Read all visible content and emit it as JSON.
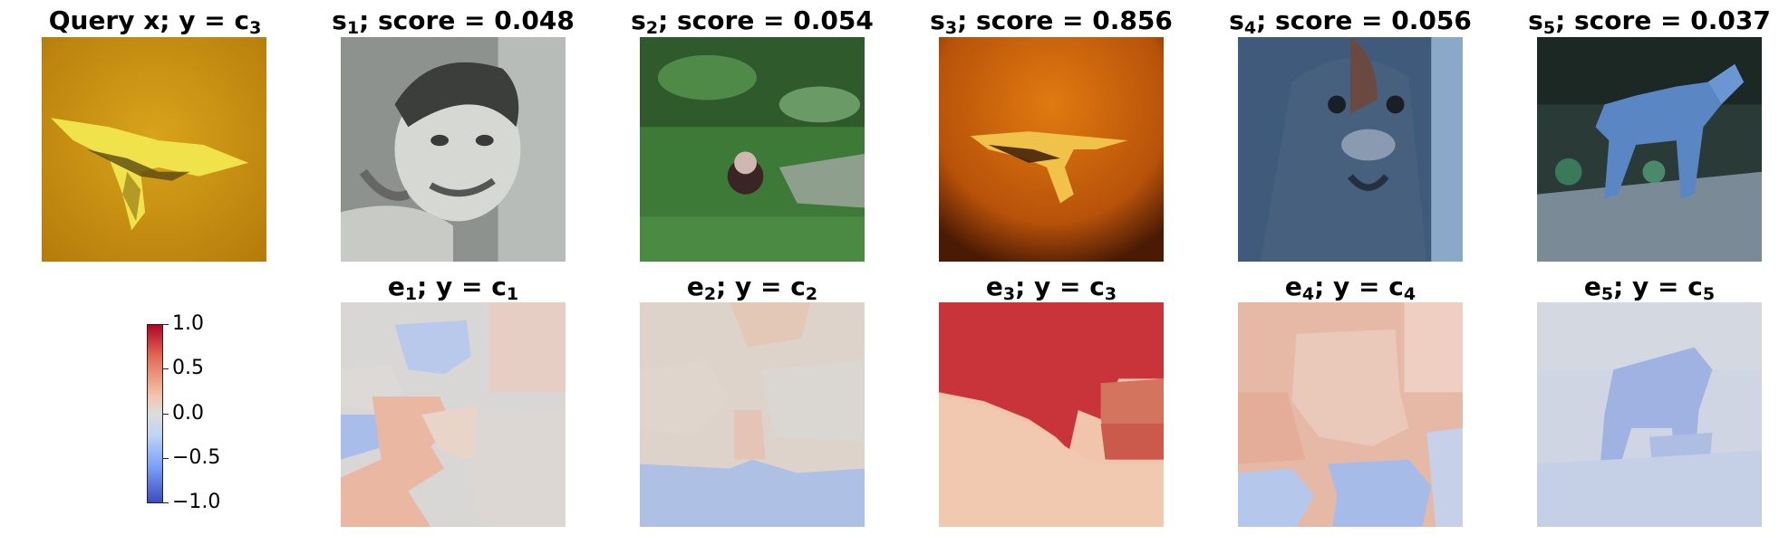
{
  "query": {
    "label": "Query x; y = ",
    "class_base": "c",
    "class_sub": "3"
  },
  "samples": [
    {
      "base": "s",
      "sub": "1",
      "score_text": "; score = 0.048"
    },
    {
      "base": "s",
      "sub": "2",
      "score_text": "; score = 0.054"
    },
    {
      "base": "s",
      "sub": "3",
      "score_text": "; score = 0.856"
    },
    {
      "base": "s",
      "sub": "4",
      "score_text": "; score = 0.056"
    },
    {
      "base": "s",
      "sub": "5",
      "score_text": "; score = 0.037"
    }
  ],
  "explanations": [
    {
      "base": "e",
      "sub": "1",
      "mid": "; y = ",
      "class_base": "c",
      "class_sub": "1"
    },
    {
      "base": "e",
      "sub": "2",
      "mid": "; y = ",
      "class_base": "c",
      "class_sub": "2"
    },
    {
      "base": "e",
      "sub": "3",
      "mid": "; y = ",
      "class_base": "c",
      "class_sub": "3"
    },
    {
      "base": "e",
      "sub": "4",
      "mid": "; y = ",
      "class_base": "c",
      "class_sub": "4"
    },
    {
      "base": "e",
      "sub": "5",
      "mid": "; y = ",
      "class_base": "c",
      "class_sub": "5"
    }
  ],
  "colorbar": {
    "ticks": [
      "1.0",
      "0.5",
      "0.0",
      "−0.5",
      "−1.0"
    ],
    "colormap": "coolwarm",
    "colors": {
      "high": "#b40426",
      "mid": "#dddcdc",
      "low": "#3b4cc0"
    }
  }
}
